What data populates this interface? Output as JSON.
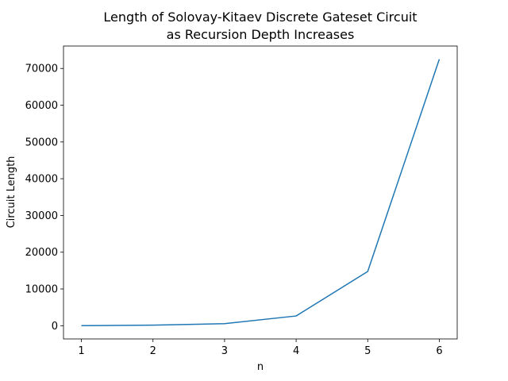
{
  "chart_data": {
    "type": "line",
    "title_lines": [
      "Length of Solovay-Kitaev Discrete Gateset Circuit",
      "as Recursion Depth Increases"
    ],
    "xlabel": "n",
    "ylabel": "Circuit Length",
    "x": [
      1,
      2,
      3,
      4,
      5,
      6
    ],
    "series": [
      {
        "values": [
          20,
          150,
          550,
          2650,
          14750,
          72500
        ],
        "color": "#1f77b4"
      }
    ],
    "xlim": [
      0.75,
      6.25
    ],
    "ylim": [
      -3600,
      76100
    ],
    "x_ticks": [
      {
        "value": 1,
        "label": "1"
      },
      {
        "value": 2,
        "label": "2"
      },
      {
        "value": 3,
        "label": "3"
      },
      {
        "value": 4,
        "label": "4"
      },
      {
        "value": 5,
        "label": "5"
      },
      {
        "value": 6,
        "label": "6"
      }
    ],
    "y_ticks": [
      {
        "value": 0,
        "label": "0"
      },
      {
        "value": 10000,
        "label": "10000"
      },
      {
        "value": 20000,
        "label": "20000"
      },
      {
        "value": 30000,
        "label": "30000"
      },
      {
        "value": 40000,
        "label": "40000"
      },
      {
        "value": 50000,
        "label": "50000"
      },
      {
        "value": 60000,
        "label": "60000"
      },
      {
        "value": 70000,
        "label": "70000"
      }
    ],
    "grid": false,
    "legend": "none"
  }
}
